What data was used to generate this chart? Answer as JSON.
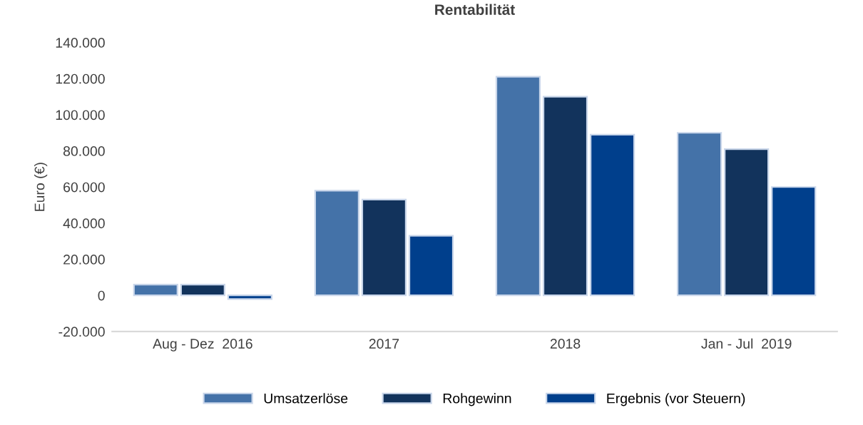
{
  "chart_data": {
    "type": "bar",
    "title": "Rentabilität",
    "ylabel": "Euro (€)",
    "categories": [
      "Aug - Dez  2016",
      "2017",
      "2018",
      "Jan - Jul  2019"
    ],
    "series": [
      {
        "name": "Umsatzerlöse",
        "color": "#4472a8",
        "values": [
          6000,
          58000,
          121000,
          90000
        ]
      },
      {
        "name": "Rohgewinn",
        "color": "#12335c",
        "values": [
          6000,
          53000,
          110000,
          81000
        ]
      },
      {
        "name": "Ergebnis (vor Steuern)",
        "color": "#003f8c",
        "values": [
          -2000,
          33000,
          89000,
          60000
        ]
      }
    ],
    "ylim": [
      -20000,
      140000
    ],
    "yticks": [
      {
        "value": -20000,
        "label": "-20.000"
      },
      0,
      {
        "value": 20000,
        "label": "20.000"
      },
      {
        "value": 40000,
        "label": "40.000"
      },
      {
        "value": 60000,
        "label": "60.000"
      },
      {
        "value": 80000,
        "label": "80.000"
      },
      {
        "value": 100000,
        "label": "100.000"
      },
      {
        "value": 120000,
        "label": "120.000"
      },
      {
        "value": 140000,
        "label": "140.000"
      }
    ],
    "grid": false,
    "legend": "bottom"
  }
}
